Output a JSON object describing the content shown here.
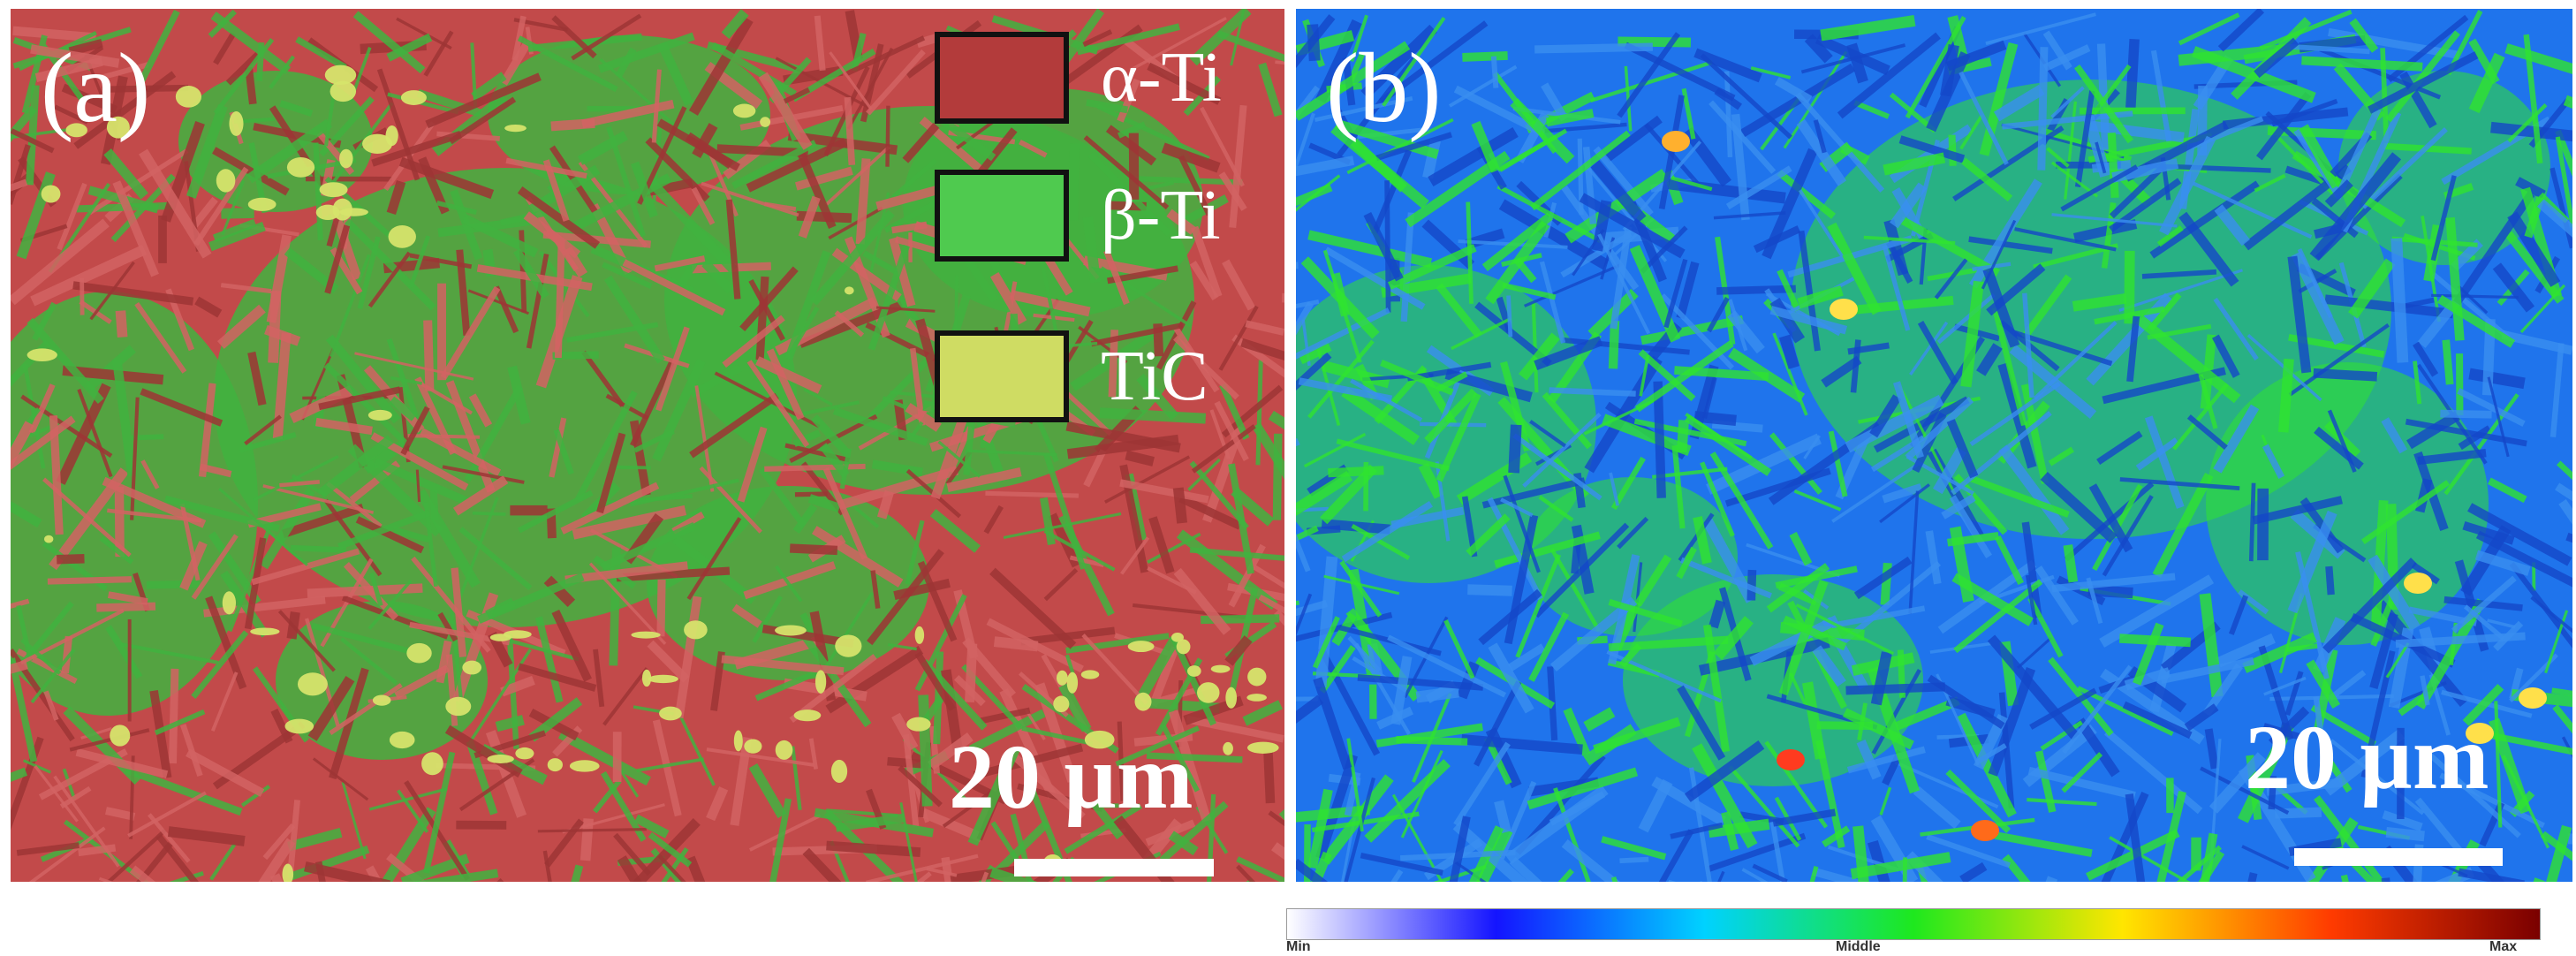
{
  "panel_a": {
    "label": "(a)",
    "scale_text": "20 µm",
    "legend": [
      {
        "label": "α-Ti",
        "color": "#b33b3b",
        "icon": "alpha-ti-swatch"
      },
      {
        "label": "β-Ti",
        "color": "#4fca4f",
        "icon": "beta-ti-swatch"
      },
      {
        "label": "TiC",
        "color": "#cfdc63",
        "icon": "tic-swatch"
      }
    ],
    "colors": {
      "matrix": "#c24a4a",
      "lath": "#d26363",
      "beta": "#41b33f",
      "tic": "#d6e46c"
    }
  },
  "panel_b": {
    "label": "(b)",
    "scale_text": "20 µm",
    "colors": {
      "base": "#1f74ec",
      "green": "#2fe32f",
      "dark_blue": "#1447c8"
    }
  },
  "colorbar": {
    "min_label": "Min",
    "middle_label": "Middle",
    "max_label": "Max",
    "stops": [
      "#ffffff",
      "#1414ff",
      "#00d2ff",
      "#1ee81e",
      "#ffe600",
      "#ff3b00",
      "#7a0000"
    ]
  }
}
